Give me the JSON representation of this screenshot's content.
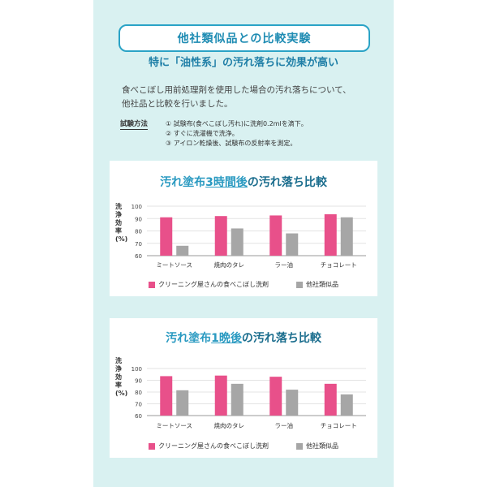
{
  "header": {
    "title": "他社類似品との比較実験",
    "subtitle": "特に「油性系」の汚れ落ちに効果が高い",
    "intro_line1": "食べこぼし用前処理剤を使用した場合の汚れ落ちについて、",
    "intro_line2": "他社品と比較を行いました。"
  },
  "method": {
    "label": "試験方法",
    "steps": [
      "① 試験布(食べこぼし汚れ)に洗剤0.2mlを滴下。",
      "② すぐに洗濯機で洗浄。",
      "③ アイロン乾燥後、試験布の反射率を測定。"
    ]
  },
  "colors": {
    "ours": "#e8508a",
    "other": "#a6a6a6",
    "accent": "#2a9ac1"
  },
  "charts": [
    {
      "title_pre": "汚れ塗布",
      "title_hl": "3時間後",
      "title_post": "の汚れ落ち比較",
      "ylabel": "洗浄効率(%)"
    },
    {
      "title_pre": "汚れ塗布",
      "title_hl": "1晩後",
      "title_post": "の汚れ落ち比較",
      "ylabel": "洗浄効率(%)"
    }
  ],
  "legend": {
    "ours": "クリーニング屋さんの食べこぼし洗剤",
    "other": "他社類似品"
  },
  "chart_data": [
    {
      "type": "bar",
      "title": "汚れ塗布3時間後の汚れ落ち比較",
      "ylabel": "洗浄効率(%)",
      "categories": [
        "ミートソース",
        "焼肉のタレ",
        "ラー油",
        "チョコレート"
      ],
      "series": [
        {
          "name": "クリーニング屋さんの食べこぼし洗剤",
          "values": [
            91,
            92,
            92.5,
            93.5
          ]
        },
        {
          "name": "他社類似品",
          "values": [
            68,
            82,
            78,
            91
          ]
        }
      ],
      "yticks": [
        60,
        70,
        80,
        90,
        100
      ],
      "ylim": [
        60,
        100
      ],
      "grid": true,
      "legend_position": "bottom"
    },
    {
      "type": "bar",
      "title": "汚れ塗布1晩後の汚れ落ち比較",
      "ylabel": "洗浄効率(%)",
      "categories": [
        "ミートソース",
        "焼肉のタレ",
        "ラー油",
        "チョコレート"
      ],
      "series": [
        {
          "name": "クリーニング屋さんの食べこぼし洗剤",
          "values": [
            93.5,
            94,
            93,
            87
          ]
        },
        {
          "name": "他社類似品",
          "values": [
            81.5,
            87,
            82,
            78
          ]
        }
      ],
      "yticks": [
        60,
        70,
        80,
        90,
        100
      ],
      "ylim": [
        60,
        100
      ],
      "grid": true,
      "legend_position": "bottom"
    }
  ]
}
